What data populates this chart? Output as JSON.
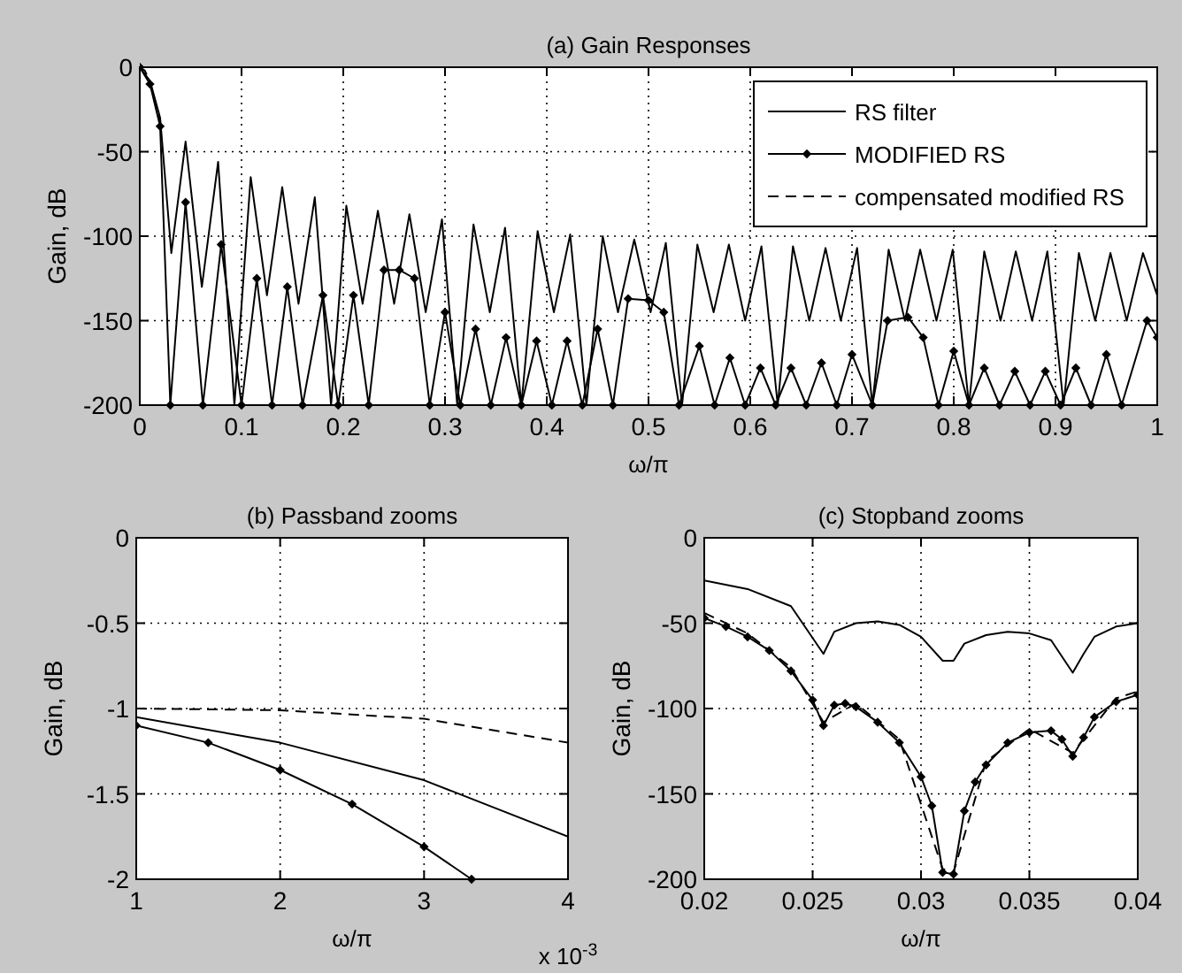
{
  "chart_data": [
    {
      "type": "line",
      "title": "(a) Gain Responses",
      "xlabel": "ω/π",
      "ylabel": "Gain, dB",
      "xlim": [
        0,
        1
      ],
      "ylim": [
        -200,
        0
      ],
      "xticks": [
        0,
        0.1,
        0.2,
        0.3,
        0.4,
        0.5,
        0.6,
        0.7,
        0.8,
        0.9,
        1
      ],
      "yticks": [
        0,
        -50,
        -100,
        -150,
        -200
      ],
      "grid": true,
      "legend": "top right",
      "series": [
        {
          "name": "RS filter",
          "color": "#000000",
          "line_style": "solid",
          "marker": "none",
          "x": [
            0,
            0.01,
            0.02,
            0.031,
            0.045,
            0.061,
            0.077,
            0.093,
            0.109,
            0.125,
            0.14,
            0.156,
            0.172,
            0.188,
            0.203,
            0.219,
            0.234,
            0.25,
            0.265,
            0.281,
            0.297,
            0.312,
            0.328,
            0.344,
            0.359,
            0.375,
            0.391,
            0.407,
            0.423,
            0.439,
            0.455,
            0.47,
            0.486,
            0.502,
            0.517,
            0.533,
            0.548,
            0.564,
            0.579,
            0.595,
            0.611,
            0.627,
            0.642,
            0.658,
            0.674,
            0.689,
            0.705,
            0.72,
            0.736,
            0.752,
            0.767,
            0.783,
            0.799,
            0.815,
            0.83,
            0.846,
            0.861,
            0.877,
            0.892,
            0.908,
            0.923,
            0.939,
            0.954,
            0.97,
            0.986,
            1
          ],
          "values": [
            0,
            -8,
            -30,
            -110,
            -44,
            -130,
            -56,
            -200,
            -65,
            -135,
            -71,
            -140,
            -77,
            -200,
            -82,
            -140,
            -85,
            -140,
            -87,
            -145,
            -90,
            -200,
            -93,
            -145,
            -95,
            -200,
            -97,
            -145,
            -99,
            -200,
            -100,
            -145,
            -102,
            -145,
            -104,
            -200,
            -105,
            -145,
            -105,
            -150,
            -106,
            -200,
            -106,
            -150,
            -107,
            -150,
            -107,
            -200,
            -108,
            -150,
            -108,
            -150,
            -108,
            -200,
            -109,
            -150,
            -109,
            -150,
            -109,
            -200,
            -110,
            -150,
            -110,
            -150,
            -110,
            -135
          ]
        },
        {
          "name": "MODIFIED RS",
          "color": "#000000",
          "line_style": "solid",
          "marker": "diamond",
          "x": [
            0,
            0.01,
            0.02,
            0.03,
            0.045,
            0.062,
            0.08,
            0.1,
            0.115,
            0.13,
            0.145,
            0.16,
            0.18,
            0.195,
            0.21,
            0.225,
            0.24,
            0.255,
            0.27,
            0.285,
            0.3,
            0.315,
            0.33,
            0.345,
            0.36,
            0.375,
            0.39,
            0.405,
            0.42,
            0.435,
            0.45,
            0.465,
            0.48,
            0.5,
            0.515,
            0.53,
            0.55,
            0.565,
            0.58,
            0.595,
            0.61,
            0.625,
            0.64,
            0.655,
            0.67,
            0.685,
            0.7,
            0.72,
            0.735,
            0.755,
            0.77,
            0.785,
            0.8,
            0.815,
            0.83,
            0.845,
            0.86,
            0.875,
            0.89,
            0.905,
            0.92,
            0.935,
            0.95,
            0.965,
            0.99,
            1
          ],
          "values": [
            0,
            -10,
            -35,
            -200,
            -80,
            -200,
            -105,
            -200,
            -125,
            -200,
            -130,
            -200,
            -135,
            -200,
            -135,
            -200,
            -120,
            -120,
            -125,
            -200,
            -145,
            -200,
            -155,
            -200,
            -160,
            -200,
            -162,
            -200,
            -162,
            -200,
            -155,
            -200,
            -137,
            -138,
            -145,
            -200,
            -165,
            -200,
            -172,
            -200,
            -178,
            -200,
            -178,
            -200,
            -175,
            -200,
            -170,
            -200,
            -150,
            -148,
            -160,
            -200,
            -168,
            -200,
            -178,
            -200,
            -180,
            -200,
            -180,
            -200,
            -178,
            -200,
            -170,
            -200,
            -150,
            -160
          ]
        },
        {
          "name": "compensated modified RS",
          "color": "#000000",
          "line_style": "dashed",
          "marker": "none",
          "x": [
            0,
            0.005,
            0.01,
            0.015,
            0.02
          ],
          "values": [
            0,
            -2,
            -9,
            -20,
            -34
          ]
        }
      ]
    },
    {
      "type": "line",
      "title": "(b) Passband zooms",
      "xlabel": "ω/π",
      "ylabel": "Gain, dB",
      "xlim": [
        1,
        4
      ],
      "ylim": [
        -2,
        0
      ],
      "xticks": [
        1,
        2,
        3,
        4
      ],
      "yticks": [
        0,
        -0.5,
        -1,
        -1.5,
        -2
      ],
      "grid": true,
      "annotations": [
        "x 10$^{-3}$"
      ],
      "series": [
        {
          "color": "#000000",
          "line_style": "solid",
          "marker": "none",
          "x": [
            1,
            2,
            3,
            4
          ],
          "values": [
            -1.05,
            -1.2,
            -1.42,
            -1.75
          ]
        },
        {
          "color": "#000000",
          "line_style": "solid",
          "marker": "diamond",
          "x": [
            1,
            1.5,
            2,
            2.5,
            3,
            3.33
          ],
          "values": [
            -1.1,
            -1.2,
            -1.36,
            -1.56,
            -1.81,
            -2
          ]
        },
        {
          "color": "#000000",
          "line_style": "dashed",
          "marker": "none",
          "x": [
            1,
            2,
            3,
            4
          ],
          "values": [
            -1,
            -1.01,
            -1.06,
            -1.2
          ]
        }
      ]
    },
    {
      "type": "line",
      "title": "(c) Stopband zooms",
      "xlabel": "ω/π",
      "ylabel": "Gain, dB",
      "xlim": [
        0.02,
        0.04
      ],
      "ylim": [
        -200,
        0
      ],
      "xticks": [
        0.02,
        0.025,
        0.03,
        0.035,
        0.04
      ],
      "yticks": [
        0,
        -50,
        -100,
        -150,
        -200
      ],
      "grid": true,
      "series": [
        {
          "color": "#000000",
          "line_style": "solid",
          "marker": "none",
          "x": [
            0.02,
            0.022,
            0.024,
            0.0255,
            0.026,
            0.027,
            0.028,
            0.029,
            0.03,
            0.031,
            0.0315,
            0.032,
            0.033,
            0.034,
            0.035,
            0.036,
            0.037,
            0.0375,
            0.038,
            0.039,
            0.04
          ],
          "values": [
            -25,
            -30,
            -40,
            -68,
            -55,
            -50,
            -49,
            -51,
            -58,
            -72,
            -72,
            -62,
            -57,
            -55,
            -56,
            -60,
            -79,
            -68,
            -58,
            -52,
            -50
          ]
        },
        {
          "color": "#000000",
          "line_style": "solid",
          "marker": "diamond",
          "x": [
            0.02,
            0.021,
            0.022,
            0.023,
            0.024,
            0.025,
            0.0255,
            0.026,
            0.0265,
            0.027,
            0.028,
            0.029,
            0.03,
            0.0305,
            0.031,
            0.0315,
            0.032,
            0.0325,
            0.033,
            0.034,
            0.035,
            0.036,
            0.0365,
            0.037,
            0.0375,
            0.038,
            0.039,
            0.04
          ],
          "values": [
            -47,
            -52,
            -58,
            -66,
            -78,
            -95,
            -110,
            -98,
            -97,
            -99,
            -108,
            -120,
            -140,
            -157,
            -196,
            -197,
            -160,
            -143,
            -133,
            -120,
            -114,
            -113,
            -118,
            -128,
            -117,
            -105,
            -96,
            -92
          ]
        },
        {
          "color": "#000000",
          "line_style": "dashed",
          "marker": "none",
          "x": [
            0.02,
            0.022,
            0.024,
            0.0255,
            0.027,
            0.029,
            0.031,
            0.0315,
            0.033,
            0.035,
            0.037,
            0.039,
            0.04
          ],
          "values": [
            -44,
            -56,
            -76,
            -108,
            -97,
            -118,
            -194,
            -196,
            -131,
            -112,
            -126,
            -94,
            -90
          ]
        }
      ]
    }
  ]
}
